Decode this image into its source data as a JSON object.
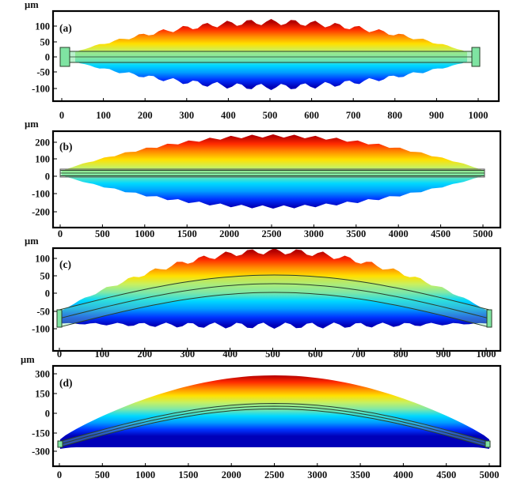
{
  "colors": {
    "gradient": [
      "#b30000",
      "#ff2a00",
      "#ff8c00",
      "#ffe000",
      "#c8f060",
      "#7fe8a8",
      "#00d8ff",
      "#009cff",
      "#0034ff",
      "#0000b8"
    ],
    "device_fill": "#7fe4a2",
    "device_stroke": "#2a3f2a"
  },
  "panels": [
    {
      "label": "(a)",
      "unit": "µm",
      "shape": "flat",
      "x_ticks": [
        "0",
        "100",
        "200",
        "300",
        "400",
        "500",
        "600",
        "700",
        "800",
        "900",
        "1000"
      ],
      "y_ticks": [
        "100",
        "50",
        "0",
        "-50",
        "-100"
      ]
    },
    {
      "label": "(b)",
      "unit": "µm",
      "shape": "flat",
      "x_ticks": [
        "0",
        "500",
        "1000",
        "1500",
        "2000",
        "2500",
        "3000",
        "3500",
        "4000",
        "4500",
        "5000"
      ],
      "y_ticks": [
        "200",
        "100",
        "0",
        "-100",
        "-200"
      ]
    },
    {
      "label": "(c)",
      "unit": "µm",
      "shape": "curved",
      "x_ticks": [
        "0",
        "100",
        "200",
        "300",
        "400",
        "500",
        "600",
        "700",
        "800",
        "900",
        "1000"
      ],
      "y_ticks": [
        "100",
        "50",
        "0",
        "-50",
        "-100"
      ]
    },
    {
      "label": "(d)",
      "unit": "µm",
      "shape": "curved",
      "x_ticks": [
        "0",
        "500",
        "1000",
        "1500",
        "2000",
        "2500",
        "3000",
        "3500",
        "4000",
        "4500",
        "5000"
      ],
      "y_ticks": [
        "300",
        "150",
        "0",
        "-150",
        "-300"
      ]
    }
  ]
}
